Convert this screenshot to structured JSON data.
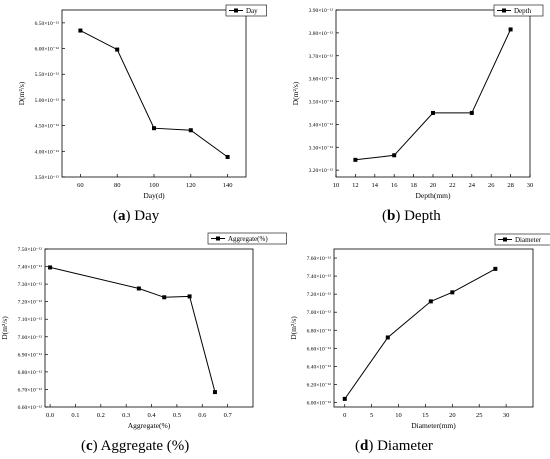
{
  "chart_data": [
    {
      "type": "line",
      "caption": {
        "letter": "a",
        "text": "Day"
      },
      "ylabel": "D(m²/s)",
      "xlabel": "Day(d)",
      "legend": "Day",
      "xlim": [
        50,
        150
      ],
      "ylim": [
        3.5,
        6.75
      ],
      "xticks": [
        60,
        80,
        100,
        120,
        140
      ],
      "yticks": [
        3.5,
        4.0,
        4.5,
        5.0,
        5.5,
        6.0,
        6.5
      ],
      "ytick_labels": [
        "3.50×10⁻¹²",
        "4.00×10⁻¹²",
        "4.50×10⁻¹²",
        "5.00×10⁻¹²",
        "5.50×10⁻¹²",
        "6.00×10⁻¹²",
        "6.50×10⁻¹²"
      ],
      "xtick_labels": [
        "60",
        "80",
        "100",
        "120",
        "140"
      ],
      "x": [
        60,
        80,
        100,
        120,
        140
      ],
      "y": [
        6.35,
        5.98,
        4.45,
        4.41,
        3.89
      ]
    },
    {
      "type": "line",
      "caption": {
        "letter": "b",
        "text": "Depth"
      },
      "ylabel": "D(m²/s)",
      "xlabel": "Depth(mm)",
      "legend": "Depth",
      "xlim": [
        10,
        30
      ],
      "ylim": [
        3.17,
        3.9
      ],
      "xticks": [
        10,
        12,
        14,
        16,
        18,
        20,
        22,
        24,
        26,
        28,
        30
      ],
      "yticks": [
        3.2,
        3.3,
        3.4,
        3.5,
        3.6,
        3.7,
        3.8,
        3.9
      ],
      "ytick_labels": [
        "3.20×10⁻¹²",
        "3.30×10⁻¹²",
        "3.40×10⁻¹²",
        "3.50×10⁻¹²",
        "3.60×10⁻¹²",
        "3.70×10⁻¹²",
        "3.80×10⁻¹²",
        "3.90×10⁻¹²"
      ],
      "xtick_labels": [
        "10",
        "12",
        "14",
        "16",
        "18",
        "20",
        "22",
        "24",
        "26",
        "28",
        "30"
      ],
      "x": [
        12,
        16,
        20,
        24,
        28
      ],
      "y": [
        3.245,
        3.265,
        3.45,
        3.45,
        3.815
      ]
    },
    {
      "type": "line",
      "caption": {
        "letter": "c",
        "text": "Aggregate (%)"
      },
      "ylabel": "D(m²/s)",
      "xlabel": "Aggregate(%)",
      "legend": "Aggregate(%)",
      "xlim": [
        -0.02,
        0.8
      ],
      "ylim": [
        6.6,
        7.5
      ],
      "xticks": [
        0.0,
        0.1,
        0.2,
        0.3,
        0.4,
        0.5,
        0.6,
        0.7
      ],
      "yticks": [
        6.6,
        6.7,
        6.8,
        6.9,
        7.0,
        7.1,
        7.2,
        7.3,
        7.4,
        7.5
      ],
      "ytick_labels": [
        "6.60×10⁻¹²",
        "6.70×10⁻¹²",
        "6.80×10⁻¹²",
        "6.90×10⁻¹²",
        "7.00×10⁻¹²",
        "7.10×10⁻¹²",
        "7.20×10⁻¹²",
        "7.30×10⁻¹²",
        "7.40×10⁻¹²",
        "7.50×10⁻¹²"
      ],
      "xtick_labels": [
        "0.0",
        "0.1",
        "0.2",
        "0.3",
        "0.4",
        "0.5",
        "0.6",
        "0.7"
      ],
      "x": [
        0.0,
        0.35,
        0.45,
        0.55,
        0.65
      ],
      "y": [
        7.395,
        7.275,
        7.225,
        7.23,
        6.685
      ]
    },
    {
      "type": "line",
      "caption": {
        "letter": "d",
        "text": "Diameter"
      },
      "ylabel": "D(m²/s)",
      "xlabel": "Diameter(mm)",
      "legend": "Diameter",
      "xlim": [
        -2,
        35
      ],
      "ylim": [
        5.95,
        7.7
      ],
      "xticks": [
        0,
        5,
        10,
        15,
        20,
        25,
        30
      ],
      "yticks": [
        6.0,
        6.2,
        6.4,
        6.6,
        6.8,
        7.0,
        7.2,
        7.4,
        7.6
      ],
      "ytick_labels": [
        "6.00×10⁻¹²",
        "6.20×10⁻¹²",
        "6.40×10⁻¹²",
        "6.60×10⁻¹²",
        "6.80×10⁻¹²",
        "7.00×10⁻¹²",
        "7.20×10⁻¹²",
        "7.40×10⁻¹²",
        "7.60×10⁻¹²"
      ],
      "xtick_labels": [
        "0",
        "5",
        "10",
        "15",
        "20",
        "25",
        "30"
      ],
      "x": [
        0,
        8,
        16,
        20,
        28
      ],
      "y": [
        6.04,
        6.72,
        7.12,
        7.22,
        7.48
      ]
    }
  ]
}
